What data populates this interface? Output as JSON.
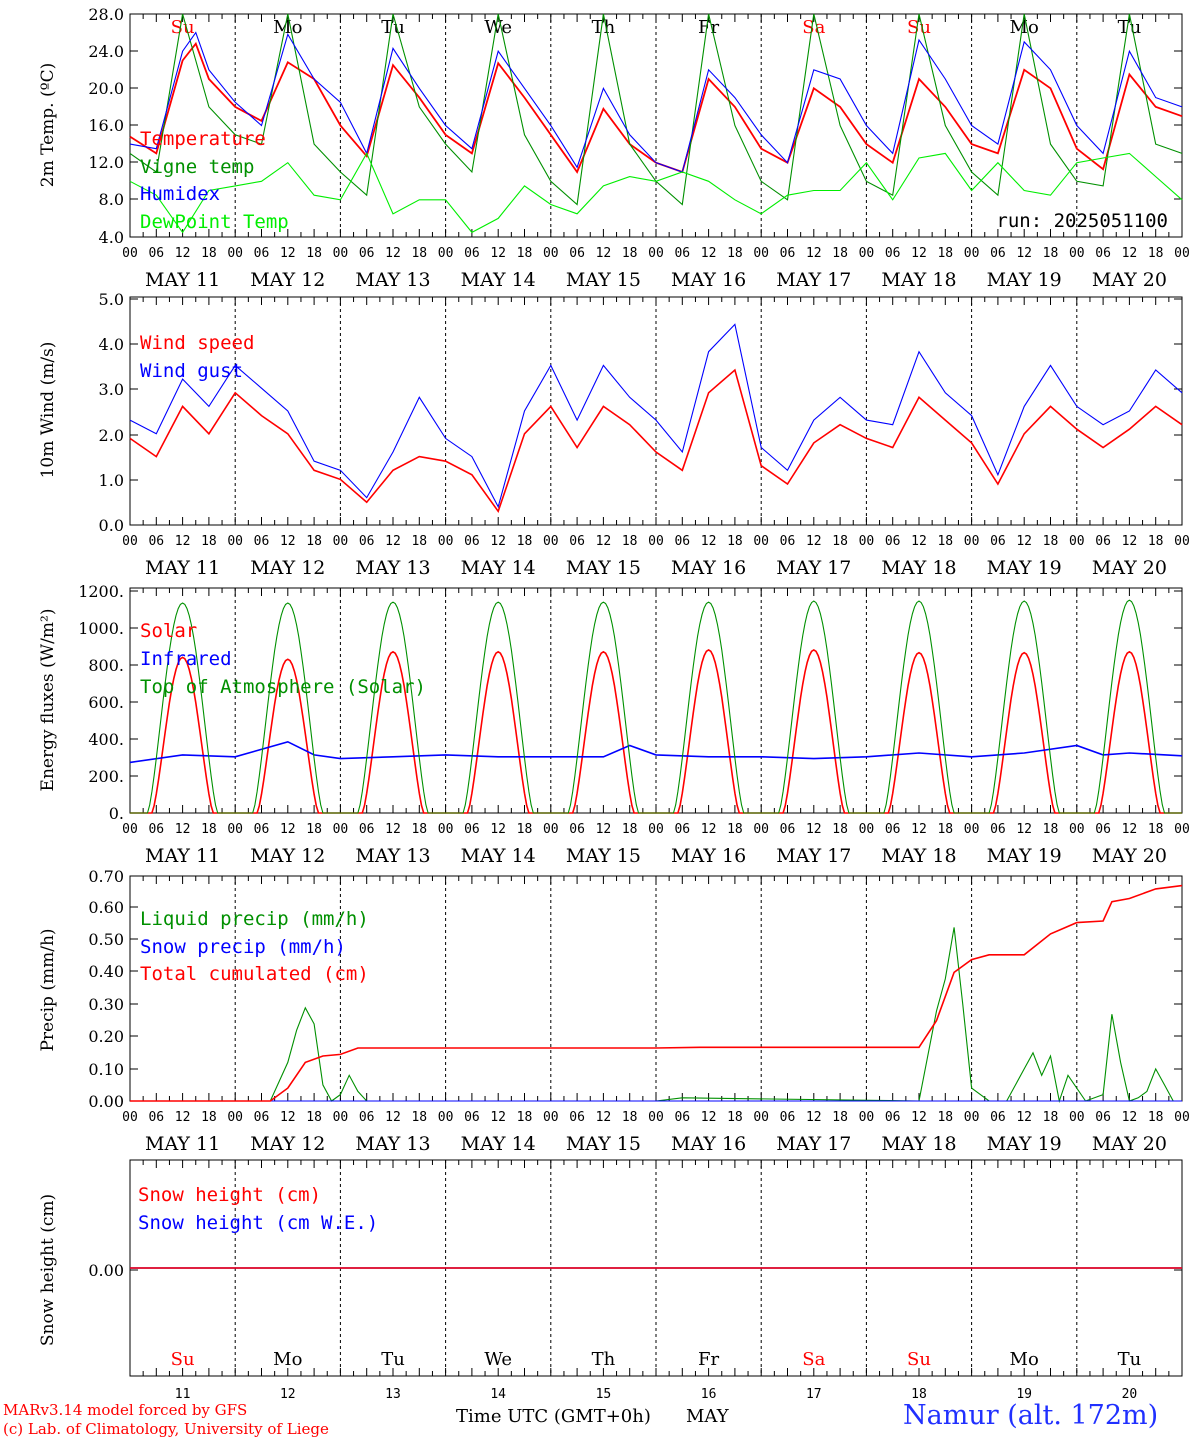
{
  "colors": {
    "red": "#ff0000",
    "green": "#009000",
    "blue": "#0000ff",
    "lightgreen": "#00ee00",
    "orange": "#ff0000"
  },
  "days": [
    "Su",
    "Mo",
    "Tu",
    "We",
    "Th",
    "Fr",
    "Sa",
    "Su",
    "Mo",
    "Tu"
  ],
  "day_colors": [
    "#ff0000",
    "#000000",
    "#000000",
    "#000000",
    "#000000",
    "#000000",
    "#ff0000",
    "#ff0000",
    "#000000",
    "#000000"
  ],
  "dates": [
    "MAY 11",
    "MAY 12",
    "MAY 13",
    "MAY 14",
    "MAY 15",
    "MAY 16",
    "MAY 17",
    "MAY 18",
    "MAY 19",
    "MAY 20"
  ],
  "day_numbers": [
    "11",
    "12",
    "13",
    "14",
    "15",
    "16",
    "17",
    "18",
    "19",
    "20"
  ],
  "hour_ticks": [
    "00",
    "06",
    "12",
    "18"
  ],
  "run_label": "run: 2025051100",
  "footer": {
    "model": "MARv3.14 model forced by GFS",
    "lab": "(c) Lab. of Climatology, University of Liege",
    "xlabel": "Time UTC (GMT+0h)",
    "month": "MAY",
    "station": "Namur (alt. 172m)"
  },
  "chart_data": [
    {
      "type": "line",
      "ylabel": "2m Temp. (ºC)",
      "ylim": [
        4.0,
        28.0
      ],
      "yticks": [
        "4.0",
        "8.0",
        "12.0",
        "16.0",
        "20.0",
        "24.0",
        "28.0"
      ],
      "x_unit": "hours since 11 May 00 UTC",
      "series": [
        {
          "name": "Temperature",
          "color": "#ff0000",
          "x": [
            0,
            6,
            12,
            15,
            18,
            24,
            30,
            36,
            42,
            48,
            54,
            60,
            66,
            72,
            78,
            84,
            90,
            96,
            102,
            108,
            114,
            120,
            126,
            132,
            138,
            144,
            150,
            156,
            162,
            168,
            174,
            180,
            186,
            192,
            198,
            204,
            210,
            216,
            222,
            228,
            234,
            240
          ],
          "y": [
            14.8,
            13.0,
            23.0,
            24.8,
            21.0,
            18.0,
            16.5,
            22.8,
            21.0,
            16.0,
            12.7,
            22.5,
            19.0,
            15.0,
            13.0,
            22.7,
            19.0,
            15.0,
            11.0,
            17.8,
            14.0,
            12.0,
            11.0,
            21.0,
            18.0,
            13.5,
            12.0,
            20.0,
            18.0,
            14.0,
            12.0,
            21.0,
            18.0,
            14.0,
            13.0,
            22.0,
            20.0,
            13.5,
            11.3,
            21.5,
            18.0,
            17.0
          ]
        },
        {
          "name": "Vigne temp",
          "color": "#009000",
          "x": [
            0,
            6,
            12,
            18,
            24,
            30,
            36,
            42,
            48,
            54,
            60,
            66,
            72,
            78,
            84,
            90,
            96,
            102,
            108,
            114,
            120,
            126,
            132,
            138,
            144,
            150,
            156,
            162,
            168,
            174,
            180,
            186,
            192,
            198,
            204,
            210,
            216,
            222,
            228,
            234,
            240
          ],
          "y": [
            13.0,
            11.0,
            30.0,
            18.0,
            15.0,
            14.0,
            30.0,
            14.0,
            11.0,
            8.5,
            30.0,
            18.0,
            14.0,
            11.0,
            30.0,
            15.0,
            10.0,
            7.5,
            30.0,
            14.0,
            10.0,
            7.5,
            30.0,
            16.0,
            10.0,
            8.0,
            30.0,
            16.0,
            10.0,
            8.5,
            30.0,
            16.0,
            11.0,
            8.5,
            30.0,
            14.0,
            10.0,
            9.5,
            30.0,
            14.0,
            13.0
          ]
        },
        {
          "name": "Humidex",
          "color": "#0000ff",
          "x": [
            0,
            6,
            12,
            15,
            18,
            24,
            30,
            36,
            42,
            48,
            54,
            60,
            66,
            72,
            78,
            84,
            90,
            96,
            102,
            108,
            114,
            120,
            126,
            132,
            138,
            144,
            150,
            156,
            162,
            168,
            174,
            180,
            186,
            192,
            198,
            204,
            210,
            216,
            222,
            228,
            234,
            240
          ],
          "y": [
            14.0,
            13.5,
            24.0,
            26.0,
            22.0,
            18.5,
            16.0,
            25.8,
            21.0,
            18.5,
            13.0,
            24.3,
            20.0,
            16.0,
            13.5,
            24.0,
            20.0,
            16.0,
            11.5,
            20.0,
            15.0,
            12.0,
            11.0,
            22.0,
            19.0,
            15.0,
            12.0,
            22.0,
            21.0,
            16.0,
            13.0,
            25.2,
            21.0,
            16.0,
            14.0,
            25.0,
            22.0,
            16.0,
            13.0,
            24.0,
            19.0,
            18.0
          ]
        },
        {
          "name": "DewPoint Temp",
          "color": "#00ee00",
          "x": [
            0,
            6,
            12,
            18,
            24,
            30,
            36,
            42,
            48,
            54,
            60,
            66,
            72,
            78,
            84,
            90,
            96,
            102,
            108,
            114,
            120,
            126,
            132,
            138,
            144,
            150,
            156,
            162,
            168,
            174,
            180,
            186,
            192,
            198,
            204,
            210,
            216,
            222,
            228,
            234,
            240
          ],
          "y": [
            10.0,
            8.5,
            4.5,
            9.0,
            9.5,
            10.0,
            12.0,
            8.5,
            8.0,
            13.0,
            6.5,
            8.0,
            8.0,
            4.5,
            6.0,
            9.5,
            7.5,
            6.5,
            9.5,
            10.5,
            10.0,
            11.0,
            10.0,
            8.0,
            6.5,
            8.5,
            9.0,
            9.0,
            12.0,
            8.0,
            12.5,
            13.0,
            9.0,
            12.0,
            9.0,
            8.5,
            12.0,
            12.5,
            13.0,
            10.5,
            8.0
          ]
        }
      ]
    },
    {
      "type": "line",
      "ylabel": "10m Wind (m/s)",
      "ylim": [
        0.0,
        5.0
      ],
      "yticks": [
        "0.0",
        "1.0",
        "2.0",
        "3.0",
        "4.0",
        "5.0"
      ],
      "series": [
        {
          "name": "Wind speed",
          "color": "#ff0000",
          "x": [
            0,
            6,
            12,
            18,
            24,
            30,
            36,
            42,
            48,
            54,
            60,
            66,
            72,
            78,
            84,
            90,
            96,
            102,
            108,
            114,
            120,
            126,
            132,
            138,
            144,
            150,
            156,
            162,
            168,
            174,
            180,
            186,
            192,
            198,
            204,
            210,
            216,
            222,
            228,
            234,
            240
          ],
          "y": [
            1.9,
            1.5,
            2.6,
            2.0,
            2.9,
            2.4,
            2.0,
            1.2,
            1.0,
            0.5,
            1.2,
            1.5,
            1.4,
            1.1,
            0.3,
            2.0,
            2.6,
            1.7,
            2.6,
            2.2,
            1.6,
            1.2,
            2.9,
            3.4,
            1.3,
            0.9,
            1.8,
            2.2,
            1.9,
            1.7,
            2.8,
            2.3,
            1.8,
            0.9,
            2.0,
            2.6,
            2.1,
            1.7,
            2.1,
            2.6,
            2.2
          ]
        },
        {
          "name": "Wind gust",
          "color": "#0000ff",
          "x": [
            0,
            6,
            12,
            18,
            24,
            30,
            36,
            42,
            48,
            54,
            60,
            66,
            72,
            78,
            84,
            90,
            96,
            102,
            108,
            114,
            120,
            126,
            132,
            138,
            144,
            150,
            156,
            162,
            168,
            174,
            180,
            186,
            192,
            198,
            204,
            210,
            216,
            222,
            228,
            234,
            240
          ],
          "y": [
            2.3,
            2.0,
            3.2,
            2.6,
            3.5,
            3.0,
            2.5,
            1.4,
            1.2,
            0.6,
            1.6,
            2.8,
            1.9,
            1.5,
            0.4,
            2.5,
            3.5,
            2.3,
            3.5,
            2.8,
            2.3,
            1.6,
            3.8,
            4.4,
            1.7,
            1.2,
            2.3,
            2.8,
            2.3,
            2.2,
            3.8,
            2.9,
            2.4,
            1.1,
            2.6,
            3.5,
            2.6,
            2.2,
            2.5,
            3.4,
            2.9
          ]
        }
      ]
    },
    {
      "type": "line",
      "ylabel": "Energy fluxes (W/m²)",
      "ylim": [
        0,
        1200
      ],
      "yticks": [
        "0.",
        "200.",
        "400.",
        "600.",
        "800.",
        "1000.",
        "1200."
      ],
      "series": [
        {
          "name": "Solar",
          "color": "#ff0000",
          "daily_peak": [
            830,
            820,
            860,
            860,
            860,
            870,
            870,
            855,
            855,
            860
          ]
        },
        {
          "name": "Infrared",
          "color": "#0000ff",
          "x": [
            0,
            12,
            24,
            36,
            42,
            48,
            60,
            72,
            84,
            96,
            108,
            114,
            120,
            132,
            144,
            156,
            168,
            180,
            192,
            204,
            216,
            222,
            228,
            240
          ],
          "y": [
            270,
            310,
            300,
            380,
            310,
            290,
            300,
            310,
            300,
            300,
            300,
            360,
            310,
            300,
            300,
            290,
            300,
            320,
            300,
            320,
            360,
            310,
            320,
            305
          ]
        },
        {
          "name": "Top of Atmosphere (Solar)",
          "color": "#009000",
          "daily_peak": [
            1120,
            1120,
            1125,
            1125,
            1125,
            1125,
            1130,
            1130,
            1130,
            1135
          ]
        }
      ]
    },
    {
      "type": "line",
      "ylabel": "Precip (mm/h)",
      "ylim": [
        0.0,
        0.7
      ],
      "yticks": [
        "0.00",
        "0.10",
        "0.20",
        "0.30",
        "0.40",
        "0.50",
        "0.60",
        "0.70"
      ],
      "series": [
        {
          "name": "Liquid precip (mm/h)",
          "color": "#009000",
          "x": [
            0,
            32,
            36,
            38,
            40,
            42,
            44,
            46,
            48,
            50,
            52,
            54,
            56,
            60,
            120,
            126,
            180,
            184,
            186,
            188,
            190,
            192,
            194,
            196,
            198,
            200,
            204,
            206,
            208,
            210,
            212,
            214,
            218,
            222,
            224,
            226,
            228,
            230,
            232,
            234,
            236,
            238,
            240
          ],
          "y": [
            0,
            0,
            0.12,
            0.22,
            0.29,
            0.24,
            0.05,
            0,
            0.02,
            0.08,
            0.03,
            0,
            0,
            0,
            0,
            0.01,
            0,
            0.28,
            0.38,
            0.54,
            0.3,
            0.04,
            0.02,
            0,
            0,
            0,
            0.1,
            0.15,
            0.08,
            0.14,
            0,
            0.08,
            0,
            0.02,
            0.27,
            0.12,
            0,
            0.01,
            0.03,
            0.1,
            0.05,
            0,
            0
          ]
        },
        {
          "name": "Snow precip (mm/h)",
          "color": "#0000ff",
          "x": [
            0,
            240
          ],
          "y": [
            0,
            0
          ]
        },
        {
          "name": "Total cumulated (cm)",
          "color": "#ff0000",
          "x": [
            0,
            32,
            36,
            40,
            44,
            48,
            52,
            54,
            60,
            120,
            130,
            180,
            184,
            188,
            192,
            196,
            204,
            210,
            216,
            222,
            224,
            228,
            234,
            240
          ],
          "y": [
            0,
            0,
            0.04,
            0.12,
            0.14,
            0.145,
            0.165,
            0.165,
            0.165,
            0.165,
            0.167,
            0.167,
            0.25,
            0.4,
            0.44,
            0.455,
            0.455,
            0.52,
            0.555,
            0.56,
            0.62,
            0.63,
            0.66,
            0.67
          ]
        }
      ]
    },
    {
      "type": "line",
      "ylabel": "Snow height (cm)",
      "ylim": [
        -1,
        1
      ],
      "yticks": [
        "0.00"
      ],
      "series": [
        {
          "name": "Snow height (cm)",
          "color": "#ff0000",
          "x": [
            0,
            240
          ],
          "y": [
            0,
            0
          ]
        },
        {
          "name": "Snow height (cm W.E.)",
          "color": "#0000ff",
          "x": [
            0,
            240
          ],
          "y": [
            0,
            0
          ]
        }
      ]
    }
  ]
}
